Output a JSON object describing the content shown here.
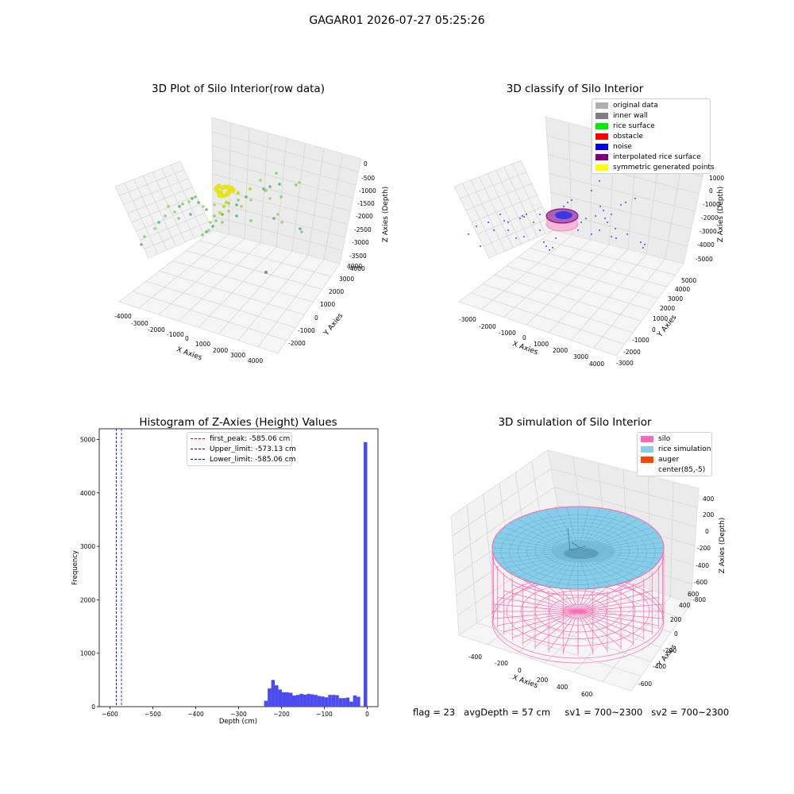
{
  "suptitle": "GAGAR01 2026-07-27 05:25:26",
  "panels": {
    "raw": {
      "title": "3D Plot of Silo Interior(row data)",
      "xlabel": "X Axies",
      "ylabel": "Y Axies",
      "zlabel": "Z Axies (Depth)",
      "xticks": [
        "-4000",
        "-3000",
        "-2000",
        "-1000",
        "0",
        "1000",
        "2000",
        "3000",
        "4000"
      ],
      "yticks": [
        "-2000",
        "-1000",
        "0",
        "1000",
        "2000",
        "3000",
        "4000"
      ],
      "zticks": [
        "0",
        "-500",
        "-1000",
        "-1500",
        "-2000",
        "-2500",
        "-3000",
        "-3500",
        "-4000"
      ]
    },
    "classify": {
      "title": "3D classify of Silo Interior",
      "xlabel": "X Axies",
      "ylabel": "Y Axies",
      "zlabel": "Z Axies (Depth)",
      "xticks": [
        "-3000",
        "-2000",
        "-1000",
        "0",
        "1000",
        "2000",
        "3000",
        "4000"
      ],
      "yticks": [
        "-3000",
        "-2000",
        "-1000",
        "0",
        "1000",
        "2000",
        "3000",
        "4000",
        "5000"
      ],
      "zticks": [
        "1000",
        "0",
        "-1000",
        "-2000",
        "-3000",
        "-4000",
        "-5000"
      ],
      "legend": [
        {
          "label": "original data",
          "color": "#b0b0b0"
        },
        {
          "label": "inner wall",
          "color": "#808080"
        },
        {
          "label": "rice surface",
          "color": "#00ee00"
        },
        {
          "label": "obstacle",
          "color": "#ff0000"
        },
        {
          "label": "noise",
          "color": "#0000ee"
        },
        {
          "label": "interpolated rice surface",
          "color": "#800080"
        },
        {
          "label": "symmetric generated points",
          "color": "#ffff00"
        }
      ]
    },
    "histogram": {
      "title": "Histogram of Z-Axies (Height) Values",
      "xlabel": "Depth (cm)",
      "ylabel": "Frequency",
      "legend": [
        {
          "label": "first_peak: -585.06 cm",
          "color": "#ff0000"
        },
        {
          "label": "Upper_limit: -573.13 cm",
          "color": "#0000ff"
        },
        {
          "label": "Lower_limit: -585.06 cm",
          "color": "#0000ff"
        }
      ]
    },
    "simulation": {
      "title": "3D simulation of Silo Interior",
      "xlabel": "X Axies",
      "ylabel": "Y Axies",
      "zlabel": "Z Axies (Depth)",
      "xticks": [
        "-400",
        "-200",
        "0",
        "200",
        "400",
        "600"
      ],
      "yticks": [
        "-600",
        "-400",
        "-200",
        "0",
        "200",
        "400",
        "600"
      ],
      "zticks": [
        "400",
        "200",
        "0",
        "-200",
        "-400",
        "-600",
        "-800"
      ],
      "legend": [
        {
          "label": "silo",
          "color": "#ff69b4"
        },
        {
          "label": "rice simulation",
          "color": "#87ceeb"
        },
        {
          "label": "auger",
          "color": "#ff4500"
        },
        {
          "label": "center(85,-5)",
          "color": "#ffffff"
        }
      ]
    }
  },
  "status": {
    "flag": "flag = 23",
    "avg_depth": "avgDepth = 57 cm",
    "sv1": "sv1 = 700~2300",
    "sv2": "sv2 = 700~2300"
  },
  "chart_data": [
    {
      "type": "histogram",
      "title": "Histogram of Z-Axies (Height) Values",
      "xlabel": "Depth (cm)",
      "ylabel": "Frequency",
      "xlim": [
        -625,
        25
      ],
      "ylim": [
        0,
        5200
      ],
      "xticks": [
        -600,
        -500,
        -400,
        -300,
        -200,
        -100,
        0
      ],
      "yticks": [
        0,
        1000,
        2000,
        3000,
        4000,
        5000
      ],
      "bin_width": 8.3,
      "bars": [
        {
          "x": -240.5,
          "count": 110
        },
        {
          "x": -232.2,
          "count": 340
        },
        {
          "x": -223.9,
          "count": 500
        },
        {
          "x": -215.6,
          "count": 400
        },
        {
          "x": -207.3,
          "count": 320
        },
        {
          "x": -199.0,
          "count": 270
        },
        {
          "x": -190.7,
          "count": 270
        },
        {
          "x": -182.4,
          "count": 260
        },
        {
          "x": -174.1,
          "count": 210
        },
        {
          "x": -165.8,
          "count": 220
        },
        {
          "x": -157.5,
          "count": 240
        },
        {
          "x": -149.2,
          "count": 225
        },
        {
          "x": -140.9,
          "count": 240
        },
        {
          "x": -132.6,
          "count": 230
        },
        {
          "x": -124.3,
          "count": 220
        },
        {
          "x": -116.0,
          "count": 200
        },
        {
          "x": -107.7,
          "count": 190
        },
        {
          "x": -99.4,
          "count": 175
        },
        {
          "x": -91.1,
          "count": 220
        },
        {
          "x": -82.8,
          "count": 220
        },
        {
          "x": -74.5,
          "count": 215
        },
        {
          "x": -66.2,
          "count": 160
        },
        {
          "x": -57.9,
          "count": 160
        },
        {
          "x": -49.6,
          "count": 170
        },
        {
          "x": -41.3,
          "count": 95
        },
        {
          "x": -33.0,
          "count": 210
        },
        {
          "x": -24.7,
          "count": 185
        },
        {
          "x": -8.3,
          "count": 4950
        }
      ],
      "vlines": [
        {
          "name": "first_peak",
          "x": -585.06,
          "color": "#ff0000"
        },
        {
          "name": "Upper_limit",
          "x": -573.13,
          "color": "#0000ff"
        },
        {
          "name": "Lower_limit",
          "x": -585.06,
          "color": "#0000ff"
        }
      ],
      "bar_color": "#4b4bf0",
      "legend_position": "top-center"
    },
    {
      "type": "scatter",
      "title": "3D Plot of Silo Interior(row data)",
      "xlabel": "X Axies",
      "ylabel": "Y Axies",
      "zlabel": "Z Axies (Depth)",
      "xlim": [
        -4000,
        4000
      ],
      "ylim": [
        -2000,
        4000
      ],
      "zlim": [
        -4000,
        0
      ]
    },
    {
      "type": "scatter",
      "title": "3D classify of Silo Interior",
      "xlabel": "X Axies",
      "ylabel": "Y Axies",
      "zlabel": "Z Axies (Depth)",
      "xlim": [
        -3000,
        4000
      ],
      "ylim": [
        -3000,
        5000
      ],
      "zlim": [
        -5000,
        1000
      ],
      "legend_position": "top-right"
    },
    {
      "type": "area",
      "title": "3D simulation of Silo Interior",
      "xlabel": "X Axies",
      "ylabel": "Y Axies",
      "zlabel": "Z Axies (Depth)",
      "xlim": [
        -400,
        600
      ],
      "ylim": [
        -600,
        600
      ],
      "zlim": [
        -800,
        400
      ],
      "legend_position": "top-right"
    }
  ]
}
